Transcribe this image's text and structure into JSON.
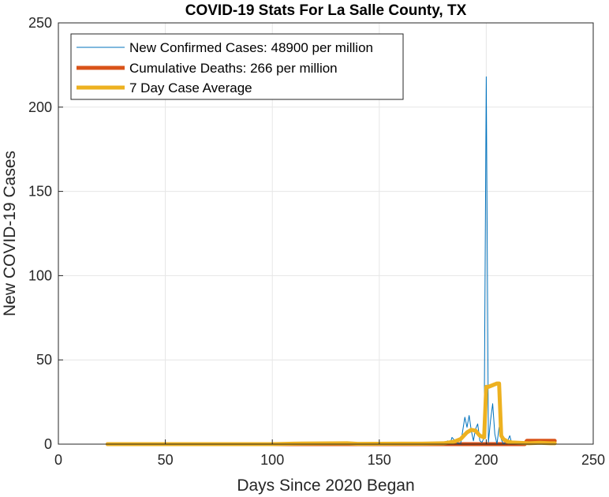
{
  "chart_data": {
    "type": "line",
    "title": "COVID-19 Stats For La Salle County, TX",
    "xlabel": "Days Since 2020 Began",
    "ylabel": "New COVID-19 Cases",
    "xlim": [
      0,
      250
    ],
    "ylim": [
      0,
      250
    ],
    "xticks": [
      0,
      50,
      100,
      150,
      200,
      250
    ],
    "yticks": [
      0,
      50,
      100,
      150,
      200,
      250
    ],
    "grid": true,
    "legend_position": "top-left",
    "series": [
      {
        "name": "New Confirmed Cases: 48900 per million",
        "color": "#0072BD",
        "style": "thin",
        "x": [
          23,
          60,
          100,
          150,
          170,
          180,
          182,
          183,
          184,
          186,
          188,
          190,
          191,
          192,
          193,
          194,
          195,
          196,
          197,
          198,
          199,
          200,
          201,
          202,
          203,
          204,
          205,
          206,
          207,
          208,
          209,
          210,
          211,
          212,
          213,
          215,
          220,
          225,
          230,
          232
        ],
        "y": [
          0,
          0,
          0,
          0,
          0,
          0,
          2,
          0,
          4,
          1,
          0,
          16,
          10,
          17,
          8,
          2,
          9,
          12,
          2,
          1,
          4,
          218,
          1,
          14,
          24,
          6,
          0,
          10,
          3,
          0,
          1,
          2,
          5,
          0,
          1,
          0,
          1,
          0,
          1,
          0
        ]
      },
      {
        "name": "Cumulative Deaths: 266 per million",
        "color": "#D95319",
        "style": "thick",
        "x": [
          23,
          100,
          150,
          195,
          208,
          218,
          219,
          232
        ],
        "y": [
          0,
          0,
          0,
          0,
          0,
          0,
          2,
          2
        ]
      },
      {
        "name": "7 Day Case Average",
        "color": "#EDB120",
        "style": "thick",
        "x": [
          23,
          100,
          110,
          135,
          140,
          170,
          180,
          185,
          188,
          191,
          193,
          195,
          197,
          199,
          200,
          201,
          203,
          205,
          206,
          207,
          208,
          210,
          212,
          215,
          220,
          225,
          230,
          232
        ],
        "y": [
          0,
          0,
          0.3,
          0.5,
          0.2,
          0.3,
          0.5,
          1.5,
          3,
          7,
          8.5,
          8,
          5,
          4,
          34,
          34,
          35,
          36,
          36,
          5,
          3,
          1.5,
          1,
          0.8,
          0.5,
          0.8,
          0.5,
          0.5
        ]
      }
    ]
  }
}
